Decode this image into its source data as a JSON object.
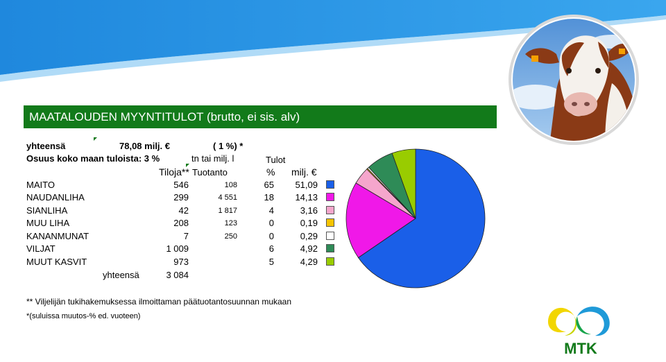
{
  "title": "MAATALOUDEN MYYNTITULOT (brutto, ei sis. alv)",
  "summary": {
    "total_label": "yhteensä",
    "total_value": "78,08 milj. €",
    "total_change": "( 1 %) *",
    "share_label": "Osuus koko maan tuloista: 3 %"
  },
  "table": {
    "headers": {
      "unit": "tn tai milj. l",
      "income_group": "Tulot",
      "farms": "Tiloja**",
      "production": "Tuotanto",
      "percent": "%",
      "million": "milj. €"
    },
    "rows": [
      {
        "name": "MAITO",
        "farms": "546",
        "production": "108",
        "percent": "65",
        "million": "51,09",
        "color": "#1a5fe8"
      },
      {
        "name": "NAUDANLIHA",
        "farms": "299",
        "production": "4 551",
        "percent": "18",
        "million": "14,13",
        "color": "#f018e8"
      },
      {
        "name": "SIANLIHA",
        "farms": "42",
        "production": "1 817",
        "percent": "4",
        "million": "3,16",
        "color": "#f5a6cc"
      },
      {
        "name": "MUU LIHA",
        "farms": "208",
        "production": "123",
        "percent": "0",
        "million": "0,19",
        "color": "#f5c400"
      },
      {
        "name": "KANANMUNAT",
        "farms": "7",
        "production": "250",
        "percent": "0",
        "million": "0,29",
        "color": "#ffffff"
      },
      {
        "name": "VILJAT",
        "farms": "1 009",
        "production": "",
        "percent": "6",
        "million": "4,92",
        "color": "#2e8b57"
      },
      {
        "name": "MUUT KASVIT",
        "farms": "973",
        "production": "",
        "percent": "5",
        "million": "4,29",
        "color": "#99cc00"
      }
    ],
    "total_label": "yhteensä",
    "total_farms": "3 084"
  },
  "footnotes": {
    "farms_note": "** Viljelijän tukihakemuksessa ilmoittaman päätuotantosuunnan mukaan",
    "change_note": "*(suluissa muutos-% ed. vuoteen)"
  },
  "logo": {
    "text": "MTK"
  },
  "chart_data": {
    "type": "pie",
    "categories": [
      "MAITO",
      "NAUDANLIHA",
      "SIANLIHA",
      "MUU LIHA",
      "KANANMUNAT",
      "VILJAT",
      "MUUT KASVIT"
    ],
    "values": [
      51.09,
      14.13,
      3.16,
      0.19,
      0.29,
      4.92,
      4.29
    ],
    "colors": [
      "#1a5fe8",
      "#f018e8",
      "#f5a6cc",
      "#f5c400",
      "#ffffff",
      "#2e8b57",
      "#99cc00"
    ],
    "start": "top",
    "direction": "clockwise"
  }
}
